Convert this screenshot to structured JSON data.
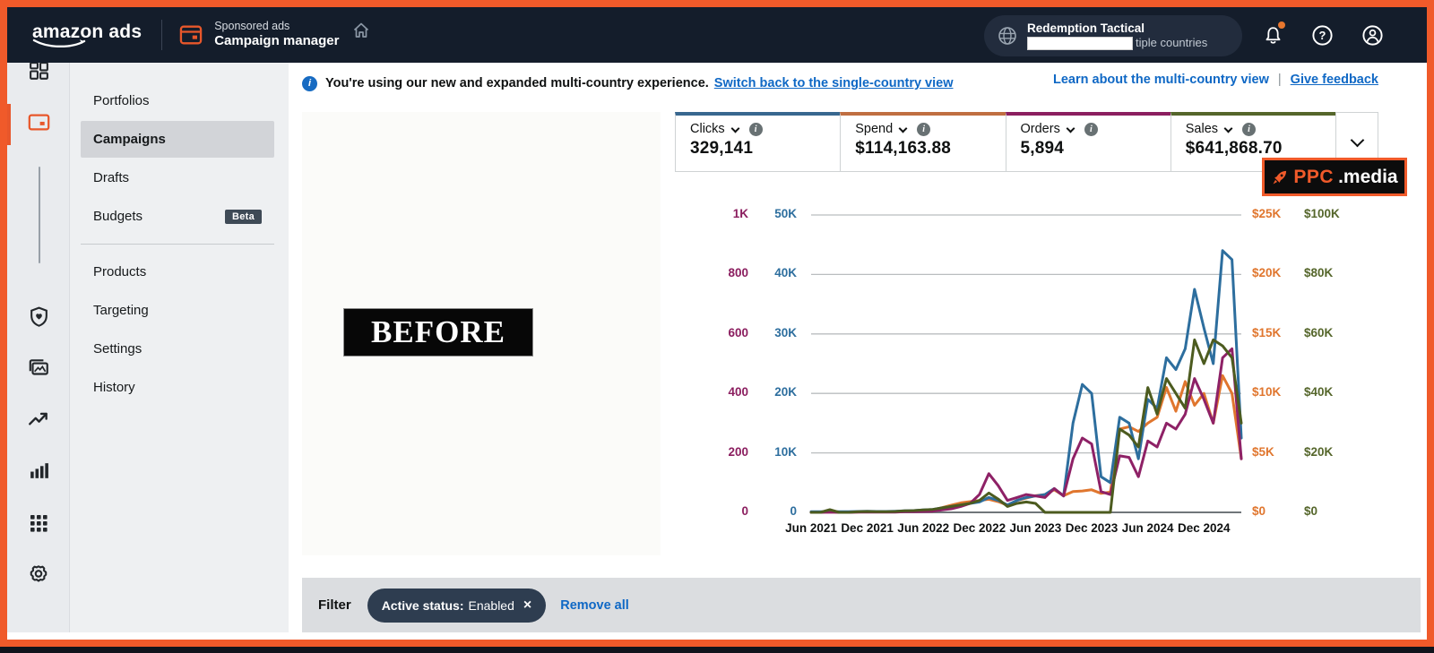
{
  "topbar": {
    "logo": "amazon ads",
    "eyebrow": "Sponsored ads",
    "title": "Campaign manager",
    "account_name": "Redemption Tactical",
    "account_subtitle_visible": "tiple countries"
  },
  "banner": {
    "message": "You're using our new and expanded multi-country experience.",
    "switch_link": "Switch back to the single-country view",
    "learn_link": "Learn about the multi-country view",
    "separator": "|",
    "feedback_link": "Give feedback"
  },
  "icon_rail": {
    "items": [
      {
        "name": "dashboard",
        "active": false
      },
      {
        "name": "campaigns",
        "active": true
      },
      {
        "name": "shield",
        "active": false
      },
      {
        "name": "creatives",
        "active": false
      },
      {
        "name": "insights",
        "active": false
      },
      {
        "name": "reports",
        "active": false
      },
      {
        "name": "apps",
        "active": false
      },
      {
        "name": "settings",
        "active": false
      }
    ]
  },
  "sidebar": {
    "items": [
      {
        "label": "Portfolios",
        "active": false
      },
      {
        "label": "Campaigns",
        "active": true
      },
      {
        "label": "Drafts",
        "active": false
      },
      {
        "label": "Budgets",
        "active": false,
        "badge": "Beta"
      },
      {
        "divider": true
      },
      {
        "label": "Products",
        "active": false
      },
      {
        "label": "Targeting",
        "active": false
      },
      {
        "label": "Settings",
        "active": false
      },
      {
        "label": "History",
        "active": false
      }
    ]
  },
  "metrics": {
    "cards": [
      {
        "label": "Clicks",
        "value": "329,141",
        "color": "#38678f"
      },
      {
        "label": "Spend",
        "value": "$114,163.88",
        "color": "#c06e41"
      },
      {
        "label": "Orders",
        "value": "5,894",
        "color": "#8b1e5f"
      },
      {
        "label": "Sales",
        "value": "$641,868.70",
        "color": "#55662b"
      }
    ]
  },
  "chart_data": {
    "type": "line",
    "title": "",
    "grid": true,
    "legend_position": "none",
    "n_points": 47,
    "x_start": "Jun 2021",
    "x_end": "Apr 2025",
    "x_tick_labels": [
      "Jun 2021",
      "Dec 2021",
      "Jun 2022",
      "Dec 2022",
      "Jun 2023",
      "Dec 2023",
      "Jun 2024",
      "Dec 2024"
    ],
    "tick_indices": [
      0,
      6,
      12,
      18,
      24,
      30,
      36,
      42
    ],
    "axes": [
      {
        "id": "orders",
        "side": "left",
        "color": "#8b1e5f",
        "max": 1000,
        "ticks": [
          "1K",
          "800",
          "600",
          "400",
          "200",
          "0"
        ]
      },
      {
        "id": "clicks",
        "side": "left",
        "color": "#2d6e9e",
        "max": 50000,
        "ticks": [
          "50K",
          "40K",
          "30K",
          "20K",
          "10K",
          "0"
        ]
      },
      {
        "id": "spend",
        "side": "right",
        "color": "#e0762e",
        "max": 25000,
        "ticks": [
          "$25K",
          "$20K",
          "$15K",
          "$10K",
          "$5K",
          "$0"
        ]
      },
      {
        "id": "sales",
        "side": "right",
        "color": "#55662b",
        "max": 100000,
        "ticks": [
          "$100K",
          "$80K",
          "$60K",
          "$40K",
          "$20K",
          "$0"
        ]
      }
    ],
    "series": [
      {
        "name": "Spend",
        "axis": "spend",
        "axis_max": 25000,
        "color": "#e0762e",
        "values": [
          20,
          20,
          30,
          20,
          20,
          30,
          50,
          40,
          40,
          50,
          80,
          100,
          150,
          200,
          400,
          600,
          800,
          900,
          1000,
          1100,
          900,
          600,
          1000,
          1200,
          1400,
          1500,
          1900,
          1400,
          1750,
          1800,
          1900,
          1600,
          1700,
          7000,
          7200,
          6800,
          7500,
          8000,
          10500,
          8500,
          11000,
          9000,
          10000,
          7500,
          11500,
          10000,
          4500
        ]
      },
      {
        "name": "Clicks",
        "axis": "clicks",
        "axis_max": 50000,
        "color": "#2d6e9e",
        "values": [
          100,
          100,
          150,
          100,
          100,
          150,
          200,
          150,
          150,
          200,
          250,
          300,
          400,
          500,
          750,
          1000,
          1250,
          1500,
          1750,
          2500,
          2000,
          1250,
          2000,
          2500,
          2750,
          3000,
          4000,
          2750,
          15000,
          21500,
          20000,
          6000,
          5000,
          16000,
          15000,
          9000,
          19000,
          17500,
          26000,
          24000,
          27500,
          37500,
          31000,
          25000,
          44000,
          42500,
          12500
        ]
      },
      {
        "name": "Orders",
        "axis": "orders",
        "axis_max": 1000,
        "color": "#8e2166",
        "values": [
          0,
          0,
          1,
          0,
          0,
          1,
          1,
          1,
          1,
          1,
          2,
          2,
          3,
          4,
          8,
          12,
          20,
          30,
          60,
          130,
          90,
          40,
          50,
          60,
          55,
          50,
          80,
          55,
          180,
          250,
          230,
          70,
          60,
          190,
          185,
          120,
          240,
          220,
          300,
          280,
          330,
          450,
          380,
          300,
          520,
          550,
          180
        ]
      },
      {
        "name": "Sales",
        "axis": "sales",
        "axis_max": 100000,
        "color": "#4c5b1f",
        "values": [
          0,
          0,
          900,
          0,
          0,
          200,
          300,
          200,
          200,
          300,
          500,
          600,
          800,
          1000,
          1500,
          2000,
          2500,
          3000,
          4000,
          6500,
          4500,
          2000,
          3000,
          3500,
          3000,
          0,
          0,
          0,
          0,
          0,
          0,
          0,
          0,
          28000,
          26000,
          22000,
          42000,
          33000,
          45000,
          40000,
          35000,
          58000,
          50000,
          58000,
          56000,
          52000,
          30000
        ]
      }
    ]
  },
  "overlays": {
    "before_label": "BEFORE",
    "watermark_ppc": "PPC",
    "watermark_media": ".media"
  },
  "filter_bar": {
    "label": "Filter",
    "chip_label": "Active status:",
    "chip_value": "Enabled",
    "remove_all": "Remove all"
  },
  "colors": {
    "frame_accent": "#f05a2a",
    "topbar_bg": "#141d2b",
    "link_blue": "#0f68c5",
    "selected_item_bg": "#d2d4d8",
    "filter_bar_bg": "#dbdde0",
    "chip_bg": "#2e3d50"
  }
}
